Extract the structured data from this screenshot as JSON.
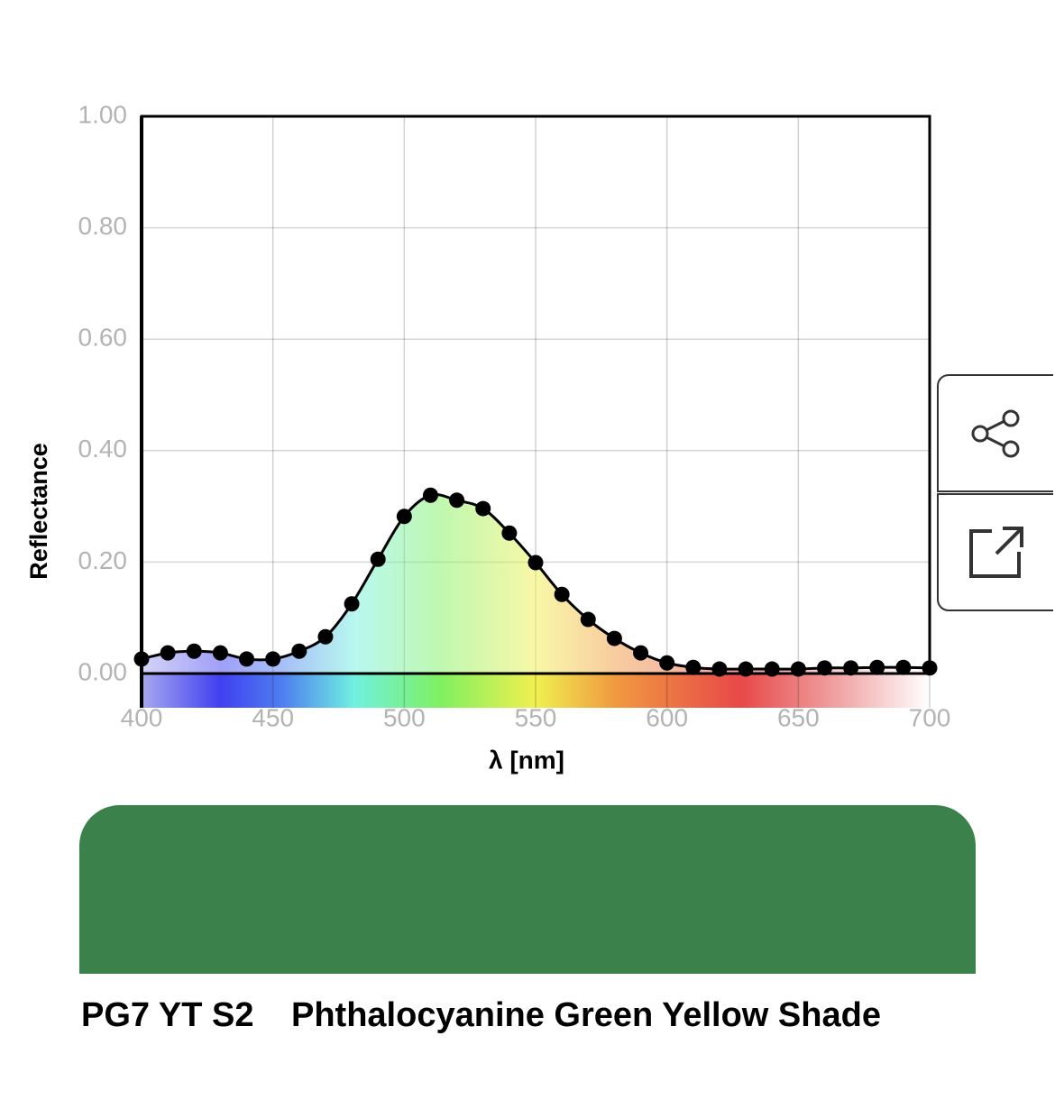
{
  "chart_data": {
    "type": "line",
    "ylabel": "Reflectance",
    "xlabel": "λ [nm]",
    "x": [
      400,
      410,
      420,
      430,
      440,
      450,
      460,
      470,
      480,
      490,
      500,
      510,
      520,
      530,
      540,
      550,
      560,
      570,
      580,
      590,
      600,
      610,
      620,
      630,
      640,
      650,
      660,
      670,
      680,
      690,
      700
    ],
    "series": [
      {
        "color": "#000000",
        "values": [
          0.026,
          0.037,
          0.04,
          0.037,
          0.026,
          0.026,
          0.04,
          0.066,
          0.125,
          0.205,
          0.282,
          0.32,
          0.311,
          0.296,
          0.252,
          0.199,
          0.142,
          0.097,
          0.063,
          0.037,
          0.019,
          0.011,
          0.008,
          0.008,
          0.008,
          0.008,
          0.01,
          0.01,
          0.011,
          0.011,
          0.01
        ]
      }
    ],
    "xlim": [
      400,
      700
    ],
    "xticks": [
      400,
      450,
      500,
      550,
      600,
      650,
      700
    ],
    "ylim": [
      0,
      1
    ],
    "yticks": [
      {
        "value": 0,
        "label": "0.00"
      },
      {
        "value": 0.2,
        "label": "0.20"
      },
      {
        "value": 0.4,
        "label": "0.40"
      },
      {
        "value": 0.6,
        "label": "0.60"
      },
      {
        "value": 0.8,
        "label": "0.80"
      },
      {
        "value": 1,
        "label": "1.00"
      }
    ],
    "grid": true
  },
  "swatch": {
    "code": "PG7 YT S2",
    "name": "Phthalocyanine Green Yellow Shade",
    "color": "#3a814c"
  }
}
